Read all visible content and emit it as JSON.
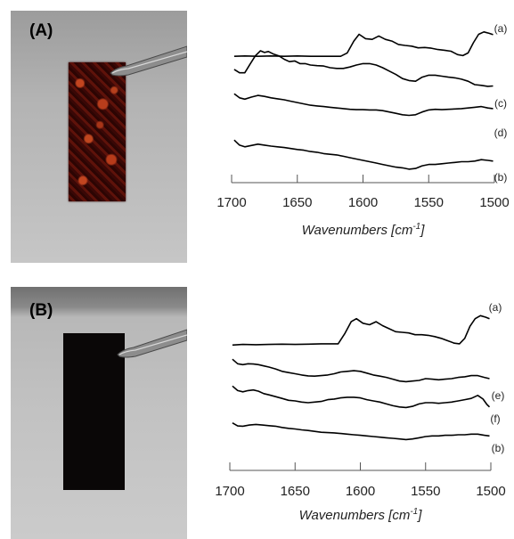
{
  "panels": [
    {
      "label": "(A)"
    },
    {
      "label": "(B)"
    }
  ],
  "chart_data": [
    {
      "type": "line",
      "xlabel": "Wavenumbers [cm-1]",
      "xlabel_main": "Wavenumbers [cm",
      "xlabel_sup": "-1",
      "xlabel_end": "]",
      "xlim": [
        1700,
        1500
      ],
      "x_reversed": true,
      "xticks": [
        1700,
        1650,
        1600,
        1550,
        1500
      ],
      "y_axis_shown": false,
      "grid": false,
      "series_labels_order_top_to_bottom": [
        "(a)",
        "(c)",
        "(d)",
        "(b)"
      ],
      "series": [
        {
          "name": "(a)",
          "label": "(a)",
          "x": [
            1698,
            1690,
            1680,
            1670,
            1660,
            1650,
            1640,
            1630,
            1620,
            1617,
            1612,
            1607,
            1603,
            1598,
            1593,
            1588,
            1583,
            1578,
            1573,
            1568,
            1563,
            1558,
            1553,
            1548,
            1543,
            1538,
            1533,
            1528,
            1524,
            1520,
            1516,
            1512,
            1508,
            1504,
            1501
          ],
          "y": [
            0.1,
            0.11,
            0.1,
            0.11,
            0.1,
            0.11,
            0.1,
            0.1,
            0.1,
            0.1,
            0.2,
            0.55,
            0.75,
            0.62,
            0.6,
            0.7,
            0.6,
            0.55,
            0.45,
            0.42,
            0.4,
            0.35,
            0.36,
            0.34,
            0.3,
            0.28,
            0.25,
            0.15,
            0.12,
            0.2,
            0.5,
            0.75,
            0.82,
            0.78,
            0.74
          ]
        },
        {
          "name": "(c)",
          "label": "(c)",
          "x": [
            1698,
            1694,
            1690,
            1686,
            1682,
            1678,
            1675,
            1672,
            1668,
            1664,
            1660,
            1656,
            1652,
            1648,
            1644,
            1640,
            1635,
            1630,
            1625,
            1620,
            1615,
            1610,
            1605,
            1600,
            1595,
            1590,
            1585,
            1580,
            1575,
            1570,
            1565,
            1560,
            1555,
            1550,
            1545,
            1540,
            1535,
            1530,
            1525,
            1520,
            1515,
            1510,
            1505,
            1501
          ],
          "y": [
            0.45,
            0.35,
            0.35,
            0.6,
            0.85,
            1.0,
            0.95,
            0.98,
            0.9,
            0.85,
            0.75,
            0.68,
            0.7,
            0.62,
            0.62,
            0.58,
            0.56,
            0.55,
            0.5,
            0.48,
            0.48,
            0.52,
            0.58,
            0.62,
            0.62,
            0.58,
            0.5,
            0.4,
            0.3,
            0.18,
            0.12,
            0.1,
            0.22,
            0.28,
            0.28,
            0.25,
            0.22,
            0.2,
            0.16,
            0.1,
            0.0,
            -0.02,
            -0.05,
            -0.04
          ]
        },
        {
          "name": "(d)",
          "label": "(d)",
          "x": [
            1698,
            1694,
            1690,
            1685,
            1680,
            1675,
            1670,
            1665,
            1660,
            1655,
            1650,
            1645,
            1640,
            1635,
            1630,
            1625,
            1620,
            1615,
            1610,
            1605,
            1600,
            1595,
            1590,
            1585,
            1580,
            1575,
            1570,
            1565,
            1560,
            1555,
            1550,
            1545,
            1540,
            1535,
            1530,
            1525,
            1520,
            1515,
            1510,
            1505,
            1501
          ],
          "y": [
            0.6,
            0.48,
            0.44,
            0.5,
            0.55,
            0.52,
            0.48,
            0.45,
            0.42,
            0.38,
            0.34,
            0.3,
            0.26,
            0.24,
            0.22,
            0.2,
            0.18,
            0.16,
            0.14,
            0.13,
            0.13,
            0.12,
            0.12,
            0.1,
            0.06,
            0.02,
            -0.02,
            -0.04,
            -0.02,
            0.06,
            0.12,
            0.14,
            0.13,
            0.14,
            0.15,
            0.16,
            0.18,
            0.2,
            0.22,
            0.18,
            0.16
          ]
        },
        {
          "name": "(b)",
          "label": "(b)",
          "x": [
            1698,
            1694,
            1690,
            1685,
            1680,
            1675,
            1670,
            1665,
            1660,
            1655,
            1650,
            1645,
            1640,
            1635,
            1630,
            1625,
            1620,
            1615,
            1610,
            1605,
            1600,
            1595,
            1590,
            1585,
            1580,
            1575,
            1570,
            1565,
            1560,
            1555,
            1550,
            1545,
            1540,
            1535,
            1530,
            1525,
            1520,
            1515,
            1510,
            1505,
            1501
          ],
          "y": [
            0.6,
            0.45,
            0.4,
            0.44,
            0.48,
            0.45,
            0.42,
            0.4,
            0.38,
            0.35,
            0.32,
            0.3,
            0.26,
            0.24,
            0.2,
            0.18,
            0.16,
            0.12,
            0.08,
            0.04,
            0.0,
            -0.04,
            -0.08,
            -0.12,
            -0.16,
            -0.2,
            -0.22,
            -0.26,
            -0.24,
            -0.16,
            -0.12,
            -0.12,
            -0.1,
            -0.08,
            -0.06,
            -0.04,
            -0.04,
            -0.02,
            0.02,
            0.0,
            -0.02
          ]
        }
      ]
    },
    {
      "type": "line",
      "xlabel": "Wavenumbers [cm-1]",
      "xlabel_main": "Wavenumbers [cm",
      "xlabel_sup": "-1",
      "xlabel_end": "]",
      "xlim": [
        1700,
        1500
      ],
      "x_reversed": true,
      "xticks": [
        1700,
        1650,
        1600,
        1550,
        1500
      ],
      "y_axis_shown": false,
      "grid": false,
      "series_labels_order_top_to_bottom": [
        "(a)",
        "(e)",
        "(f)",
        "(b)"
      ],
      "series": [
        {
          "name": "(a)",
          "label": "(a)",
          "x": [
            1698,
            1690,
            1680,
            1670,
            1660,
            1650,
            1640,
            1630,
            1620,
            1617,
            1612,
            1607,
            1603,
            1598,
            1593,
            1588,
            1583,
            1578,
            1573,
            1568,
            1563,
            1558,
            1553,
            1548,
            1543,
            1538,
            1533,
            1528,
            1524,
            1520,
            1516,
            1512,
            1508,
            1504,
            1501
          ],
          "y": [
            0.08,
            0.1,
            0.09,
            0.1,
            0.11,
            0.1,
            0.11,
            0.12,
            0.12,
            0.12,
            0.45,
            0.85,
            0.95,
            0.8,
            0.75,
            0.85,
            0.72,
            0.62,
            0.52,
            0.5,
            0.48,
            0.42,
            0.42,
            0.4,
            0.36,
            0.3,
            0.22,
            0.14,
            0.12,
            0.3,
            0.7,
            0.95,
            1.05,
            1.0,
            0.95
          ]
        },
        {
          "name": "(e)",
          "label": "(e)",
          "x": [
            1698,
            1694,
            1690,
            1686,
            1682,
            1678,
            1674,
            1670,
            1665,
            1660,
            1655,
            1650,
            1645,
            1640,
            1635,
            1630,
            1625,
            1620,
            1615,
            1610,
            1605,
            1600,
            1595,
            1590,
            1585,
            1580,
            1575,
            1570,
            1565,
            1560,
            1555,
            1550,
            1545,
            1540,
            1535,
            1530,
            1525,
            1520,
            1515,
            1510,
            1505,
            1501
          ],
          "y": [
            0.7,
            0.55,
            0.52,
            0.55,
            0.54,
            0.52,
            0.48,
            0.44,
            0.38,
            0.3,
            0.26,
            0.22,
            0.18,
            0.15,
            0.14,
            0.16,
            0.18,
            0.22,
            0.28,
            0.3,
            0.32,
            0.3,
            0.24,
            0.18,
            0.14,
            0.1,
            0.04,
            -0.02,
            -0.04,
            -0.02,
            0.0,
            0.06,
            0.04,
            0.02,
            0.04,
            0.06,
            0.1,
            0.12,
            0.16,
            0.16,
            0.1,
            0.06
          ]
        },
        {
          "name": "(f)",
          "label": "(f)",
          "x": [
            1698,
            1694,
            1690,
            1686,
            1682,
            1678,
            1674,
            1670,
            1665,
            1660,
            1655,
            1650,
            1645,
            1640,
            1635,
            1630,
            1625,
            1620,
            1615,
            1610,
            1605,
            1600,
            1595,
            1590,
            1585,
            1580,
            1575,
            1570,
            1565,
            1560,
            1555,
            1550,
            1545,
            1540,
            1535,
            1530,
            1525,
            1520,
            1515,
            1510,
            1506,
            1503,
            1501
          ],
          "y": [
            0.55,
            0.4,
            0.36,
            0.4,
            0.42,
            0.38,
            0.3,
            0.26,
            0.2,
            0.14,
            0.08,
            0.06,
            0.02,
            0.0,
            0.02,
            0.04,
            0.1,
            0.12,
            0.16,
            0.18,
            0.18,
            0.16,
            0.1,
            0.06,
            0.02,
            -0.04,
            -0.1,
            -0.14,
            -0.16,
            -0.12,
            -0.04,
            0.0,
            0.0,
            -0.02,
            0.0,
            0.02,
            0.06,
            0.1,
            0.14,
            0.24,
            0.12,
            -0.06,
            -0.14
          ]
        },
        {
          "name": "(b)",
          "label": "(b)",
          "x": [
            1698,
            1694,
            1690,
            1685,
            1680,
            1675,
            1670,
            1665,
            1660,
            1655,
            1650,
            1645,
            1640,
            1635,
            1630,
            1625,
            1620,
            1615,
            1610,
            1605,
            1600,
            1595,
            1590,
            1585,
            1580,
            1575,
            1570,
            1565,
            1560,
            1555,
            1550,
            1545,
            1540,
            1535,
            1530,
            1525,
            1520,
            1515,
            1510,
            1505,
            1501
          ],
          "y": [
            0.45,
            0.35,
            0.34,
            0.38,
            0.4,
            0.38,
            0.36,
            0.34,
            0.3,
            0.27,
            0.25,
            0.22,
            0.2,
            0.17,
            0.14,
            0.13,
            0.12,
            0.1,
            0.08,
            0.06,
            0.04,
            0.02,
            0.0,
            -0.02,
            -0.04,
            -0.06,
            -0.08,
            -0.1,
            -0.08,
            -0.04,
            0.0,
            0.02,
            0.02,
            0.04,
            0.04,
            0.06,
            0.06,
            0.08,
            0.08,
            0.04,
            0.02
          ]
        }
      ]
    }
  ],
  "series_style": {
    "line_color": "#000000"
  }
}
